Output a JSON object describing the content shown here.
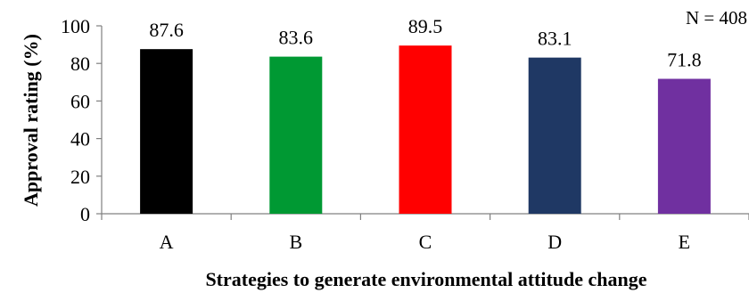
{
  "chart_data": {
    "type": "bar",
    "categories": [
      "A",
      "B",
      "C",
      "D",
      "E"
    ],
    "values": [
      87.6,
      83.6,
      89.5,
      83.1,
      71.8
    ],
    "bar_colors": [
      "#000000",
      "#009933",
      "#ff0000",
      "#1f3864",
      "#7030a0"
    ],
    "xlabel": "Strategies to generate environmental attitude change",
    "ylabel": "Approval rating (%)",
    "ylim": [
      0,
      100
    ],
    "yticks": [
      0,
      20,
      40,
      60,
      80,
      100
    ],
    "annotation": "N = 408",
    "grid": false
  }
}
